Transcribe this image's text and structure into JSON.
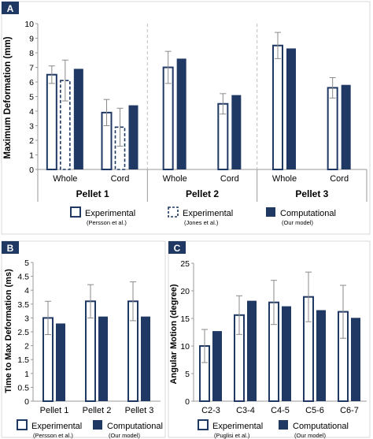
{
  "colors": {
    "navy": "#1f3864",
    "panel_label_bg": "#1f3864",
    "axis": "#999999",
    "grid_sep": "#c8c8c8"
  },
  "panels": {
    "A": {
      "label": "A",
      "legend": [
        {
          "name": "Experimental",
          "sub": "(Persson et al.)",
          "style": "hollow"
        },
        {
          "name": "Experimental",
          "sub": "(Jones et al.)",
          "style": "dashed"
        },
        {
          "name": "Computational",
          "sub": "(Our model)",
          "style": "solid"
        }
      ]
    },
    "B": {
      "label": "B",
      "legend": [
        {
          "name": "Experimental",
          "sub": "(Persson et al.)",
          "style": "hollow"
        },
        {
          "name": "Computational",
          "sub": "(Our model)",
          "style": "solid"
        }
      ]
    },
    "C": {
      "label": "C",
      "legend": [
        {
          "name": "Experimental",
          "sub": "(Puglisi et al.)",
          "style": "hollow"
        },
        {
          "name": "Computational",
          "sub": "(Our model)",
          "style": "solid"
        }
      ]
    }
  },
  "chart_data": [
    {
      "type": "bar",
      "panel": "A",
      "title": "",
      "ylabel": "Maximum Deformation (mm)",
      "xlabel": "",
      "ylim": [
        0,
        10
      ],
      "yticks": [
        0,
        1,
        2,
        3,
        4,
        5,
        6,
        7,
        8,
        9,
        10
      ],
      "groups": [
        "Pellet 1",
        "Pellet 2",
        "Pellet 3"
      ],
      "categories": [
        "Whole",
        "Cord",
        "Whole",
        "Cord",
        "Whole",
        "Cord"
      ],
      "category_group": [
        0,
        0,
        1,
        1,
        2,
        2
      ],
      "series": [
        {
          "name": "Experimental (Persson et al.)",
          "style": "hollow",
          "values": [
            6.5,
            3.9,
            7.0,
            4.5,
            8.5,
            5.6
          ],
          "error": [
            0.6,
            0.9,
            1.1,
            0.7,
            0.9,
            0.7
          ]
        },
        {
          "name": "Experimental (Jones et al.)",
          "style": "dashed",
          "values": [
            6.1,
            2.9,
            null,
            null,
            null,
            null
          ],
          "error": [
            1.4,
            1.3,
            null,
            null,
            null,
            null
          ]
        },
        {
          "name": "Computational (Our model)",
          "style": "solid",
          "values": [
            6.9,
            4.4,
            7.6,
            5.1,
            8.3,
            5.8
          ],
          "error": [
            null,
            null,
            null,
            null,
            null,
            null
          ]
        }
      ]
    },
    {
      "type": "bar",
      "panel": "B",
      "title": "",
      "ylabel": "Time to Max Deformation (ms)",
      "xlabel": "",
      "ylim": [
        0,
        5
      ],
      "yticks": [
        0,
        0.5,
        1,
        1.5,
        2,
        2.5,
        3,
        3.5,
        4,
        4.5,
        5
      ],
      "categories": [
        "Pellet 1",
        "Pellet 2",
        "Pellet 3"
      ],
      "series": [
        {
          "name": "Experimental (Persson et al.)",
          "style": "hollow",
          "values": [
            3.0,
            3.6,
            3.6
          ],
          "error": [
            0.6,
            0.6,
            0.7
          ]
        },
        {
          "name": "Computational (Our model)",
          "style": "solid",
          "values": [
            2.8,
            3.05,
            3.05
          ],
          "error": [
            null,
            null,
            null
          ]
        }
      ]
    },
    {
      "type": "bar",
      "panel": "C",
      "title": "",
      "ylabel": "Angular Motion (degree)",
      "xlabel": "",
      "ylim": [
        0,
        25
      ],
      "yticks": [
        0,
        5,
        10,
        15,
        20,
        25
      ],
      "categories": [
        "C2-3",
        "C3-4",
        "C4-5",
        "C5-6",
        "C6-7"
      ],
      "series": [
        {
          "name": "Experimental (Puglisi et al.)",
          "style": "hollow",
          "values": [
            10.0,
            15.6,
            17.9,
            18.9,
            16.2
          ],
          "error": [
            3.0,
            3.5,
            4.0,
            4.5,
            4.8
          ]
        },
        {
          "name": "Computational (Our model)",
          "style": "solid",
          "values": [
            12.7,
            18.2,
            17.2,
            16.5,
            15.1
          ],
          "error": [
            null,
            null,
            null,
            null,
            null
          ]
        }
      ]
    }
  ]
}
